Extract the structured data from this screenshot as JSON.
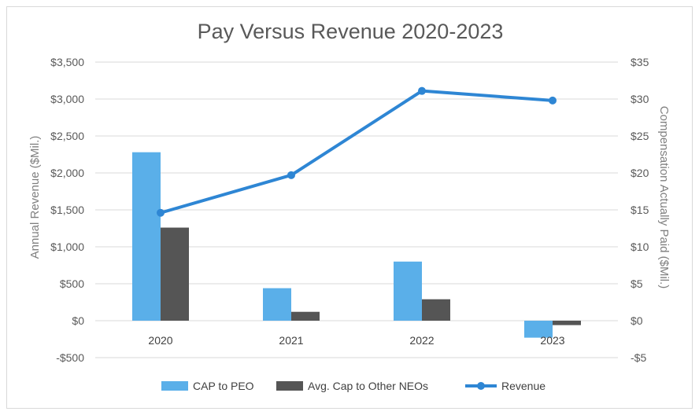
{
  "chart_data": {
    "type": "bar",
    "title": "Pay Versus Revenue 2020-2023",
    "categories": [
      "2020",
      "2021",
      "2022",
      "2023"
    ],
    "series": [
      {
        "name": "CAP to PEO",
        "kind": "bar",
        "axis": "right",
        "color": "#5aafe9",
        "values": [
          22.8,
          4.4,
          8.0,
          -2.3
        ]
      },
      {
        "name": "Avg. Cap to Other NEOs",
        "kind": "bar",
        "axis": "right",
        "color": "#555555",
        "values": [
          12.6,
          1.2,
          2.9,
          -0.6
        ]
      },
      {
        "name": "Revenue",
        "kind": "line",
        "axis": "left",
        "color": "#2e86d4",
        "values": [
          1460,
          1970,
          3110,
          2980
        ]
      }
    ],
    "y_left": {
      "label": "Annual Revenue ($Mil.)",
      "range": [
        -500,
        3500
      ],
      "ticks": [
        -500,
        0,
        500,
        1000,
        1500,
        2000,
        2500,
        3000,
        3500
      ],
      "tick_labels": [
        "-$500",
        "$0",
        "$500",
        "$1,000",
        "$1,500",
        "$2,000",
        "$2,500",
        "$3,000",
        "$3,500"
      ]
    },
    "y_right": {
      "label": "Compensation Actually Paid ($Mil.)",
      "range": [
        -5,
        35
      ],
      "ticks": [
        -5,
        0,
        5,
        10,
        15,
        20,
        25,
        30,
        35
      ],
      "tick_labels": [
        "-$5",
        "$0",
        "$5",
        "$10",
        "$15",
        "$20",
        "$25",
        "$30",
        "$35"
      ]
    },
    "grid": true,
    "legend": "bottom"
  }
}
